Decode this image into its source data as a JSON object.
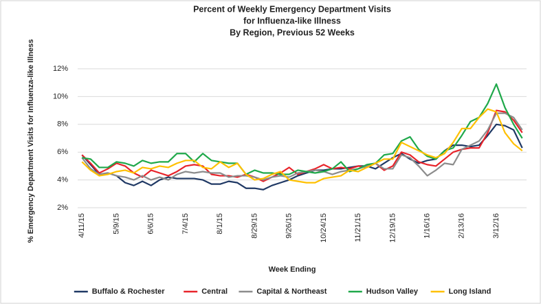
{
  "chart_data": {
    "type": "line",
    "title": [
      "Percent of Weekly Emergency Department Visits",
      "for Influenza-like Illness",
      "By Region, Previous 52 Weeks"
    ],
    "y_label": "% Emergency Department Visits for Influenza-like Illness",
    "x_label": "Week Ending",
    "categories": [
      "4/11/15",
      null,
      null,
      null,
      "5/9/15",
      null,
      null,
      null,
      "6/6/15",
      null,
      null,
      null,
      "7/4/15",
      null,
      null,
      null,
      "8/1/15",
      null,
      null,
      null,
      "8/29/15",
      null,
      null,
      null,
      "9/26/15",
      null,
      null,
      null,
      "10/24/15",
      null,
      null,
      null,
      "11/21/15",
      null,
      null,
      null,
      "12/19/15",
      null,
      null,
      null,
      "1/16/16",
      null,
      null,
      null,
      "2/13/16",
      null,
      null,
      null,
      "3/12/16",
      null,
      null,
      null
    ],
    "ylim": [
      2,
      12
    ],
    "yticks": [
      {
        "value": 2,
        "label": "2%"
      },
      {
        "value": 4,
        "label": "4%"
      },
      {
        "value": 6,
        "label": "6%"
      },
      {
        "value": 8,
        "label": "8%"
      },
      {
        "value": 10,
        "label": "10%"
      },
      {
        "value": 12,
        "label": "12%"
      }
    ],
    "grid": true,
    "legend": "bottom",
    "series": [
      {
        "name": "Buffalo & Rochester",
        "color": "#1f3864",
        "values": [
          5.8,
          5.1,
          4.4,
          4.5,
          4.3,
          3.8,
          3.6,
          3.9,
          3.6,
          4.0,
          4.2,
          4.1,
          4.1,
          4.1,
          4.0,
          3.7,
          3.7,
          3.9,
          3.8,
          3.4,
          3.4,
          3.3,
          3.6,
          3.8,
          4.0,
          4.3,
          4.5,
          4.7,
          4.7,
          4.8,
          4.8,
          4.9,
          5.0,
          5.0,
          4.8,
          5.2,
          5.6,
          5.9,
          5.5,
          5.2,
          5.4,
          5.5,
          6.1,
          6.5,
          6.5,
          6.4,
          6.5,
          7.2,
          8.0,
          7.9,
          7.6,
          6.3
        ]
      },
      {
        "name": "Central",
        "color": "#e8232a",
        "values": [
          5.8,
          5.2,
          4.5,
          4.8,
          5.2,
          5.0,
          4.5,
          4.2,
          4.7,
          4.5,
          4.3,
          4.6,
          5.0,
          5.1,
          5.0,
          4.4,
          4.3,
          4.3,
          4.2,
          4.4,
          4.2,
          3.9,
          4.2,
          4.5,
          4.9,
          4.4,
          4.6,
          4.8,
          5.1,
          4.8,
          4.9,
          4.8,
          5.0,
          4.9,
          5.2,
          4.7,
          5.0,
          6.0,
          5.8,
          5.3,
          5.1,
          5.0,
          5.5,
          6.0,
          6.2,
          6.3,
          6.3,
          7.4,
          9.0,
          8.9,
          8.3,
          7.4
        ]
      },
      {
        "name": "Capital & Northeast",
        "color": "#8c8c8c",
        "values": [
          5.6,
          4.8,
          4.4,
          4.5,
          4.3,
          4.2,
          4.0,
          4.3,
          4.0,
          4.2,
          4.0,
          4.4,
          4.6,
          4.5,
          4.6,
          4.5,
          4.5,
          4.2,
          4.3,
          4.3,
          4.2,
          4.0,
          4.2,
          4.3,
          4.2,
          4.5,
          4.6,
          4.7,
          4.6,
          4.4,
          4.6,
          4.7,
          4.8,
          5.0,
          5.2,
          4.8,
          4.8,
          5.8,
          5.6,
          5.0,
          4.3,
          4.7,
          5.2,
          5.1,
          6.2,
          6.5,
          6.8,
          7.6,
          8.8,
          8.8,
          8.5,
          7.6
        ]
      },
      {
        "name": "Hudson Valley",
        "color": "#1fa84a",
        "values": [
          5.6,
          5.5,
          4.9,
          4.9,
          5.3,
          5.2,
          5.0,
          5.4,
          5.2,
          5.3,
          5.3,
          5.9,
          5.9,
          5.3,
          5.9,
          5.4,
          5.3,
          5.2,
          5.2,
          4.4,
          4.7,
          4.5,
          4.5,
          4.4,
          4.4,
          4.7,
          4.6,
          4.5,
          4.6,
          4.8,
          5.3,
          4.6,
          4.8,
          5.1,
          5.2,
          5.8,
          5.9,
          6.8,
          7.1,
          6.2,
          5.7,
          5.5,
          6.1,
          6.3,
          7.2,
          8.2,
          8.5,
          9.5,
          10.9,
          9.2,
          8.0,
          7.0
        ]
      },
      {
        "name": "Long Island",
        "color": "#ffc000",
        "values": [
          5.3,
          4.7,
          4.3,
          4.4,
          4.6,
          4.7,
          4.5,
          4.9,
          4.8,
          5.0,
          4.9,
          5.2,
          5.4,
          5.4,
          4.9,
          4.8,
          5.3,
          4.9,
          5.2,
          4.4,
          4.0,
          4.1,
          4.4,
          4.6,
          4.0,
          3.9,
          3.8,
          3.8,
          4.1,
          4.2,
          4.3,
          4.7,
          4.6,
          4.9,
          5.2,
          5.5,
          5.5,
          6.7,
          6.4,
          6.1,
          5.8,
          5.6,
          5.9,
          6.7,
          7.7,
          7.7,
          8.5,
          9.1,
          8.9,
          7.4,
          6.6,
          6.1
        ]
      }
    ]
  }
}
